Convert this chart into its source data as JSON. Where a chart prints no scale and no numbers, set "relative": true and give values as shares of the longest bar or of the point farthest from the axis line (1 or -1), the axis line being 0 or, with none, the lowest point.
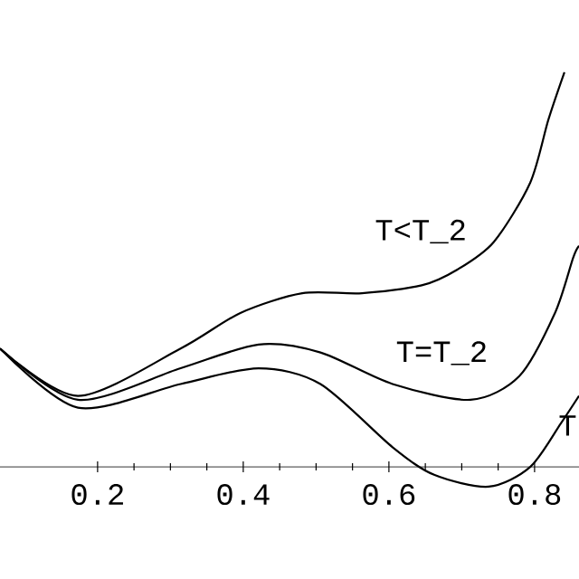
{
  "chart_data": {
    "type": "line",
    "relative": true,
    "xlim": [
      0.066,
      0.861
    ],
    "xticks": [
      0.2,
      0.4,
      0.6,
      0.8
    ],
    "series": [
      {
        "color": "#000000",
        "x": [
          0.066,
          0.173,
          0.314,
          0.396,
          0.481,
          0.563,
          0.645,
          0.694,
          0.744,
          0.794,
          0.819,
          0.841
        ],
        "values": [
          0.3,
          0.18,
          0.3,
          0.39,
          0.44,
          0.44,
          0.46,
          0.5,
          0.57,
          0.72,
          0.88,
          1.0
        ]
      },
      {
        "color": "#000000",
        "x": [
          0.066,
          0.173,
          0.314,
          0.421,
          0.506,
          0.605,
          0.712,
          0.779,
          0.828,
          0.853,
          0.861
        ],
        "values": [
          0.3,
          0.17,
          0.25,
          0.31,
          0.29,
          0.21,
          0.17,
          0.23,
          0.39,
          0.53,
          0.56
        ]
      },
      {
        "color": "#000000",
        "x": [
          0.066,
          0.173,
          0.314,
          0.421,
          0.506,
          0.605,
          0.662,
          0.737,
          0.794,
          0.836,
          0.861
        ],
        "values": [
          0.3,
          0.15,
          0.21,
          0.25,
          0.21,
          0.05,
          -0.02,
          -0.05,
          0.0,
          0.11,
          0.18
        ]
      }
    ],
    "annotations": [
      "T<T_2",
      "T=T_2",
      "T"
    ]
  }
}
